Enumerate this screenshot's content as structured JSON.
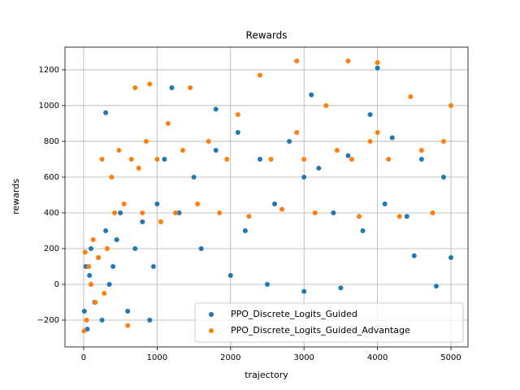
{
  "chart_data": {
    "type": "scatter",
    "title": "Rewards",
    "x_label": "trajectory",
    "y_label": "rewards",
    "xlim": [
      -254,
      5232
    ],
    "ylim": [
      -350,
      1327
    ],
    "xticks": [
      0,
      1000,
      2000,
      3000,
      4000,
      5000
    ],
    "yticks": [
      {
        "value": -200,
        "label": "−200"
      },
      0,
      200,
      400,
      600,
      800,
      1000,
      1200
    ],
    "grid": true,
    "legend": "lower right",
    "series": [
      {
        "name": "PPO_Discrete_Logits_Guided",
        "color": "#1f77b4",
        "x": [
          10,
          30,
          50,
          80,
          100,
          150,
          200,
          250,
          300,
          350,
          400,
          450,
          500,
          600,
          700,
          800,
          900,
          950,
          1000,
          1100,
          1200,
          1300,
          1500,
          1600,
          1800,
          2000,
          2100,
          2200,
          2400,
          2500,
          2600,
          2800,
          3000,
          3100,
          3200,
          3400,
          3500,
          3600,
          3800,
          3900,
          4000,
          4100,
          4200,
          4400,
          4500,
          4600,
          4800,
          4900,
          5000,
          300,
          1800,
          3000
        ],
        "values": [
          -150,
          100,
          -250,
          50,
          200,
          -100,
          150,
          -200,
          300,
          0,
          100,
          250,
          400,
          -150,
          200,
          350,
          -200,
          100,
          450,
          700,
          1100,
          400,
          600,
          200,
          750,
          50,
          850,
          300,
          700,
          0,
          450,
          800,
          -40,
          1060,
          650,
          400,
          -20,
          720,
          300,
          950,
          1210,
          450,
          820,
          380,
          160,
          700,
          -10,
          600,
          150,
          960,
          980,
          600
        ]
      },
      {
        "name": "PPO_Discrete_Logits_Guided_Advantage",
        "color": "#ff7f0e",
        "x": [
          5,
          20,
          40,
          70,
          100,
          130,
          160,
          200,
          250,
          280,
          320,
          380,
          420,
          480,
          550,
          600,
          650,
          700,
          750,
          800,
          850,
          900,
          1000,
          1050,
          1150,
          1250,
          1350,
          1450,
          1550,
          1700,
          1850,
          1950,
          2100,
          2250,
          2400,
          2550,
          2700,
          2900,
          3000,
          3150,
          3300,
          3450,
          3600,
          3750,
          3900,
          4000,
          4150,
          4300,
          4450,
          4600,
          4750,
          4900,
          5000,
          2900,
          3650,
          4000
        ],
        "values": [
          -260,
          180,
          -200,
          100,
          0,
          250,
          -100,
          150,
          700,
          -50,
          200,
          600,
          400,
          750,
          450,
          -230,
          700,
          1100,
          650,
          400,
          800,
          1120,
          700,
          350,
          900,
          400,
          750,
          1100,
          450,
          800,
          400,
          700,
          950,
          380,
          1170,
          700,
          420,
          850,
          700,
          400,
          1000,
          750,
          1250,
          380,
          800,
          1240,
          700,
          380,
          1050,
          750,
          400,
          800,
          1000,
          1250,
          700,
          850
        ]
      }
    ]
  }
}
